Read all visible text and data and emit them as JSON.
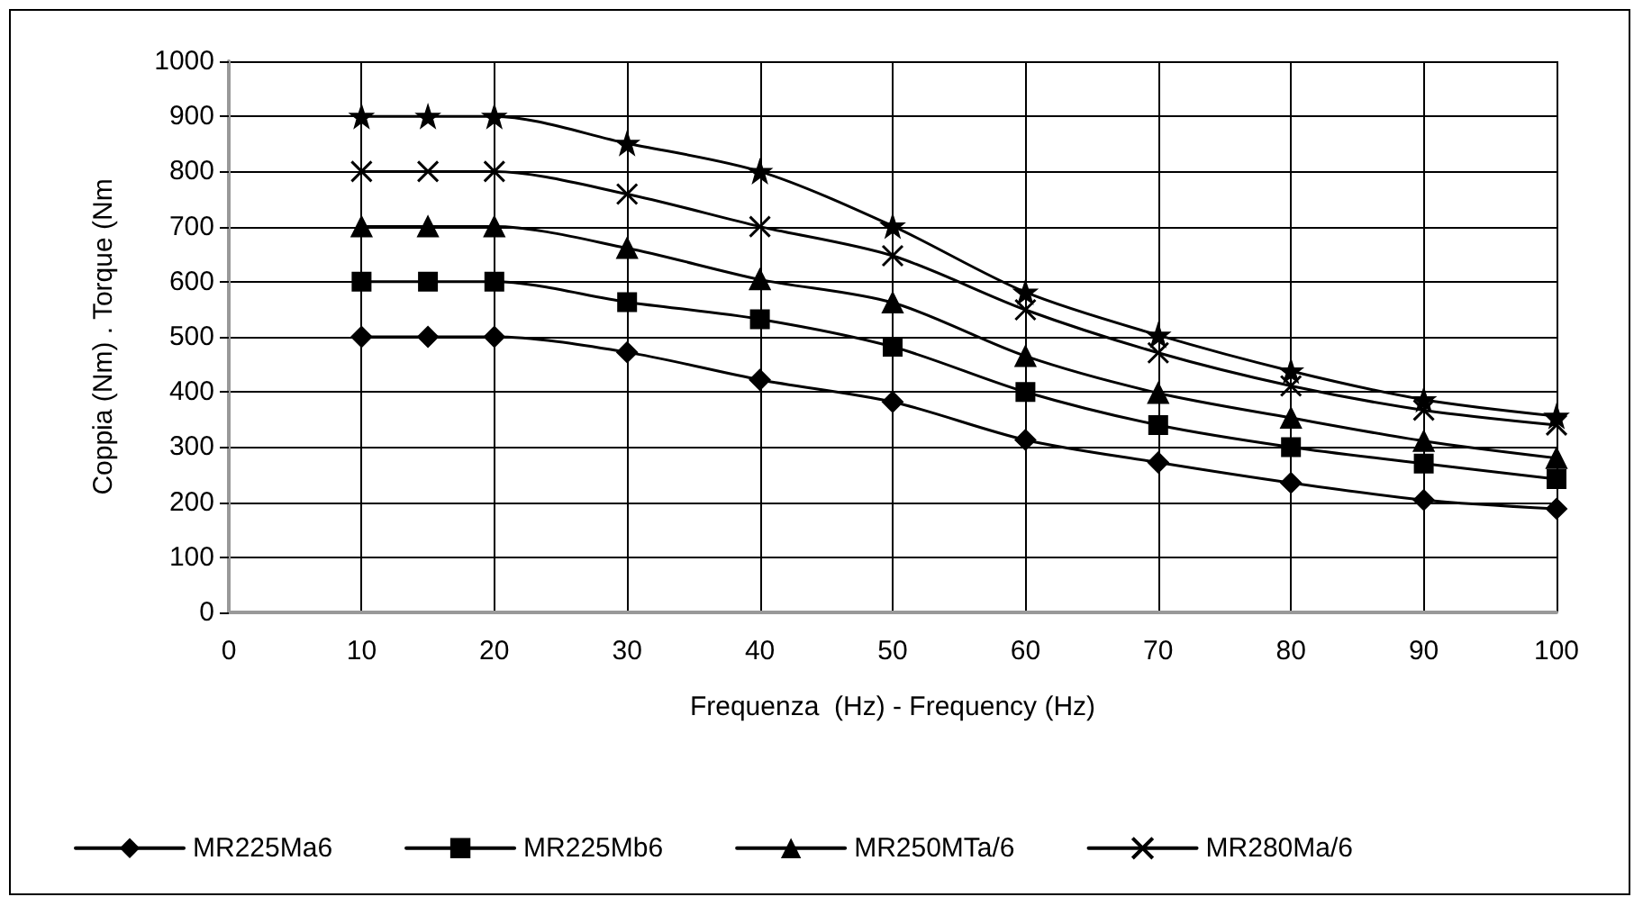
{
  "chart_data": {
    "type": "line",
    "xlabel": "Frequenza  (Hz) - Frequency (Hz)",
    "ylabel": "Coppia (Nm) . Torque (Nm",
    "x": [
      10,
      15,
      20,
      30,
      40,
      50,
      60,
      70,
      80,
      90,
      100
    ],
    "xlim": [
      0,
      100
    ],
    "xticks": [
      0,
      10,
      20,
      30,
      40,
      50,
      60,
      70,
      80,
      90,
      100
    ],
    "ylim": [
      0,
      1000
    ],
    "yticks": [
      0,
      100,
      200,
      300,
      400,
      500,
      600,
      700,
      800,
      900,
      1000
    ],
    "grid": true,
    "legend": "bottom",
    "line_style": "solid",
    "series": [
      {
        "name": "MR225Ma6",
        "color": "#000000",
        "marker": "diamond",
        "values": [
          500,
          500,
          500,
          472,
          422,
          382,
          313,
          272,
          235,
          204,
          188
        ]
      },
      {
        "name": "MR225Mb6",
        "color": "#000000",
        "marker": "square",
        "values": [
          600,
          600,
          600,
          563,
          532,
          482,
          400,
          340,
          300,
          270,
          242
        ]
      },
      {
        "name": "MR250MTa/6",
        "color": "#000000",
        "marker": "triangle",
        "values": [
          700,
          700,
          700,
          661,
          604,
          562,
          465,
          398,
          353,
          311,
          280
        ]
      },
      {
        "name": "MR280Ma/6",
        "color": "#000000",
        "marker": "cross",
        "values": [
          800,
          800,
          800,
          759,
          700,
          647,
          549,
          471,
          411,
          367,
          340
        ]
      },
      {
        "color": "#000000",
        "marker": "star",
        "values": [
          900,
          900,
          900,
          851,
          800,
          701,
          581,
          503,
          438,
          386,
          356
        ]
      }
    ]
  }
}
